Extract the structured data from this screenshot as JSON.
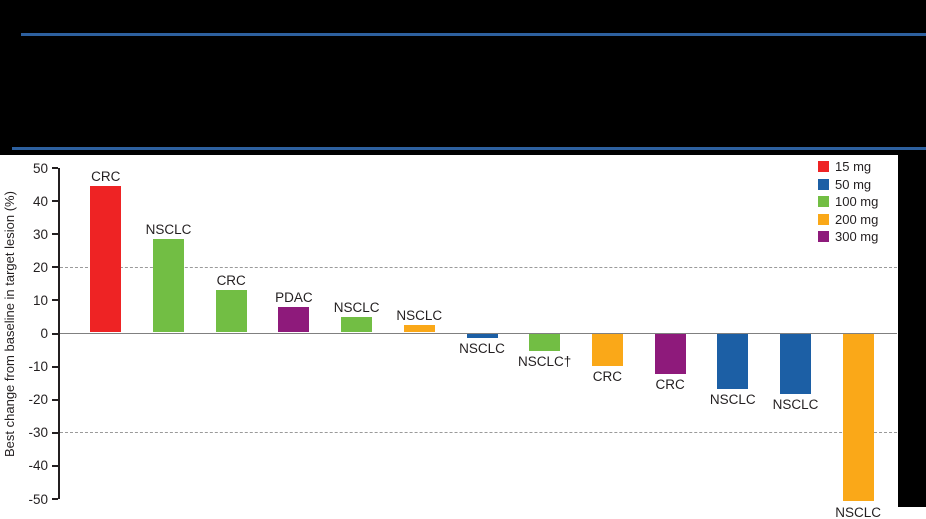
{
  "chart_data": {
    "type": "bar",
    "subtype": "waterfall",
    "title": "",
    "xlabel": "",
    "ylabel": "Best change from baseline in target lesion (%)",
    "ylim": [
      -50,
      50
    ],
    "yticks": [
      50,
      40,
      30,
      20,
      10,
      0,
      -10,
      -20,
      -30,
      -40,
      -50
    ],
    "reference_lines": [
      20,
      -30
    ],
    "grid": "off",
    "legend_position": "top-right",
    "legend": [
      {
        "label": "15 mg",
        "color": "#ee2324"
      },
      {
        "label": "50 mg",
        "color": "#1c5fa5"
      },
      {
        "label": "100 mg",
        "color": "#72be44"
      },
      {
        "label": "200 mg",
        "color": "#faa818"
      },
      {
        "label": "300 mg",
        "color": "#8e1a7b"
      }
    ],
    "bars": [
      {
        "label": "CRC",
        "dose": "15 mg",
        "value": 44.5
      },
      {
        "label": "NSCLC",
        "dose": "100 mg",
        "value": 28.5
      },
      {
        "label": "CRC",
        "dose": "100 mg",
        "value": 13
      },
      {
        "label": "PDAC",
        "dose": "300 mg",
        "value": 8
      },
      {
        "label": "NSCLC",
        "dose": "100 mg",
        "value": 5
      },
      {
        "label": "NSCLC",
        "dose": "200 mg",
        "value": 2.5
      },
      {
        "label": "NSCLC",
        "dose": "50 mg",
        "value": -1
      },
      {
        "label": "NSCLC†",
        "dose": "100 mg",
        "value": -5
      },
      {
        "label": "CRC",
        "dose": "200 mg",
        "value": -9.5
      },
      {
        "label": "CRC",
        "dose": "300 mg",
        "value": -12
      },
      {
        "label": "NSCLC",
        "dose": "50 mg",
        "value": -16.5
      },
      {
        "label": "NSCLC",
        "dose": "50 mg",
        "value": -18
      },
      {
        "label": "NSCLC",
        "dose": "200 mg",
        "value": -50.5
      }
    ],
    "colors": {
      "page_background": "#000000",
      "header_rule": "#2d609f",
      "panel_background": "#ffffff",
      "axis": "#231f20",
      "zero_line": "#808080",
      "reference_line": "#9a9a9a",
      "text": "#231f20"
    }
  }
}
